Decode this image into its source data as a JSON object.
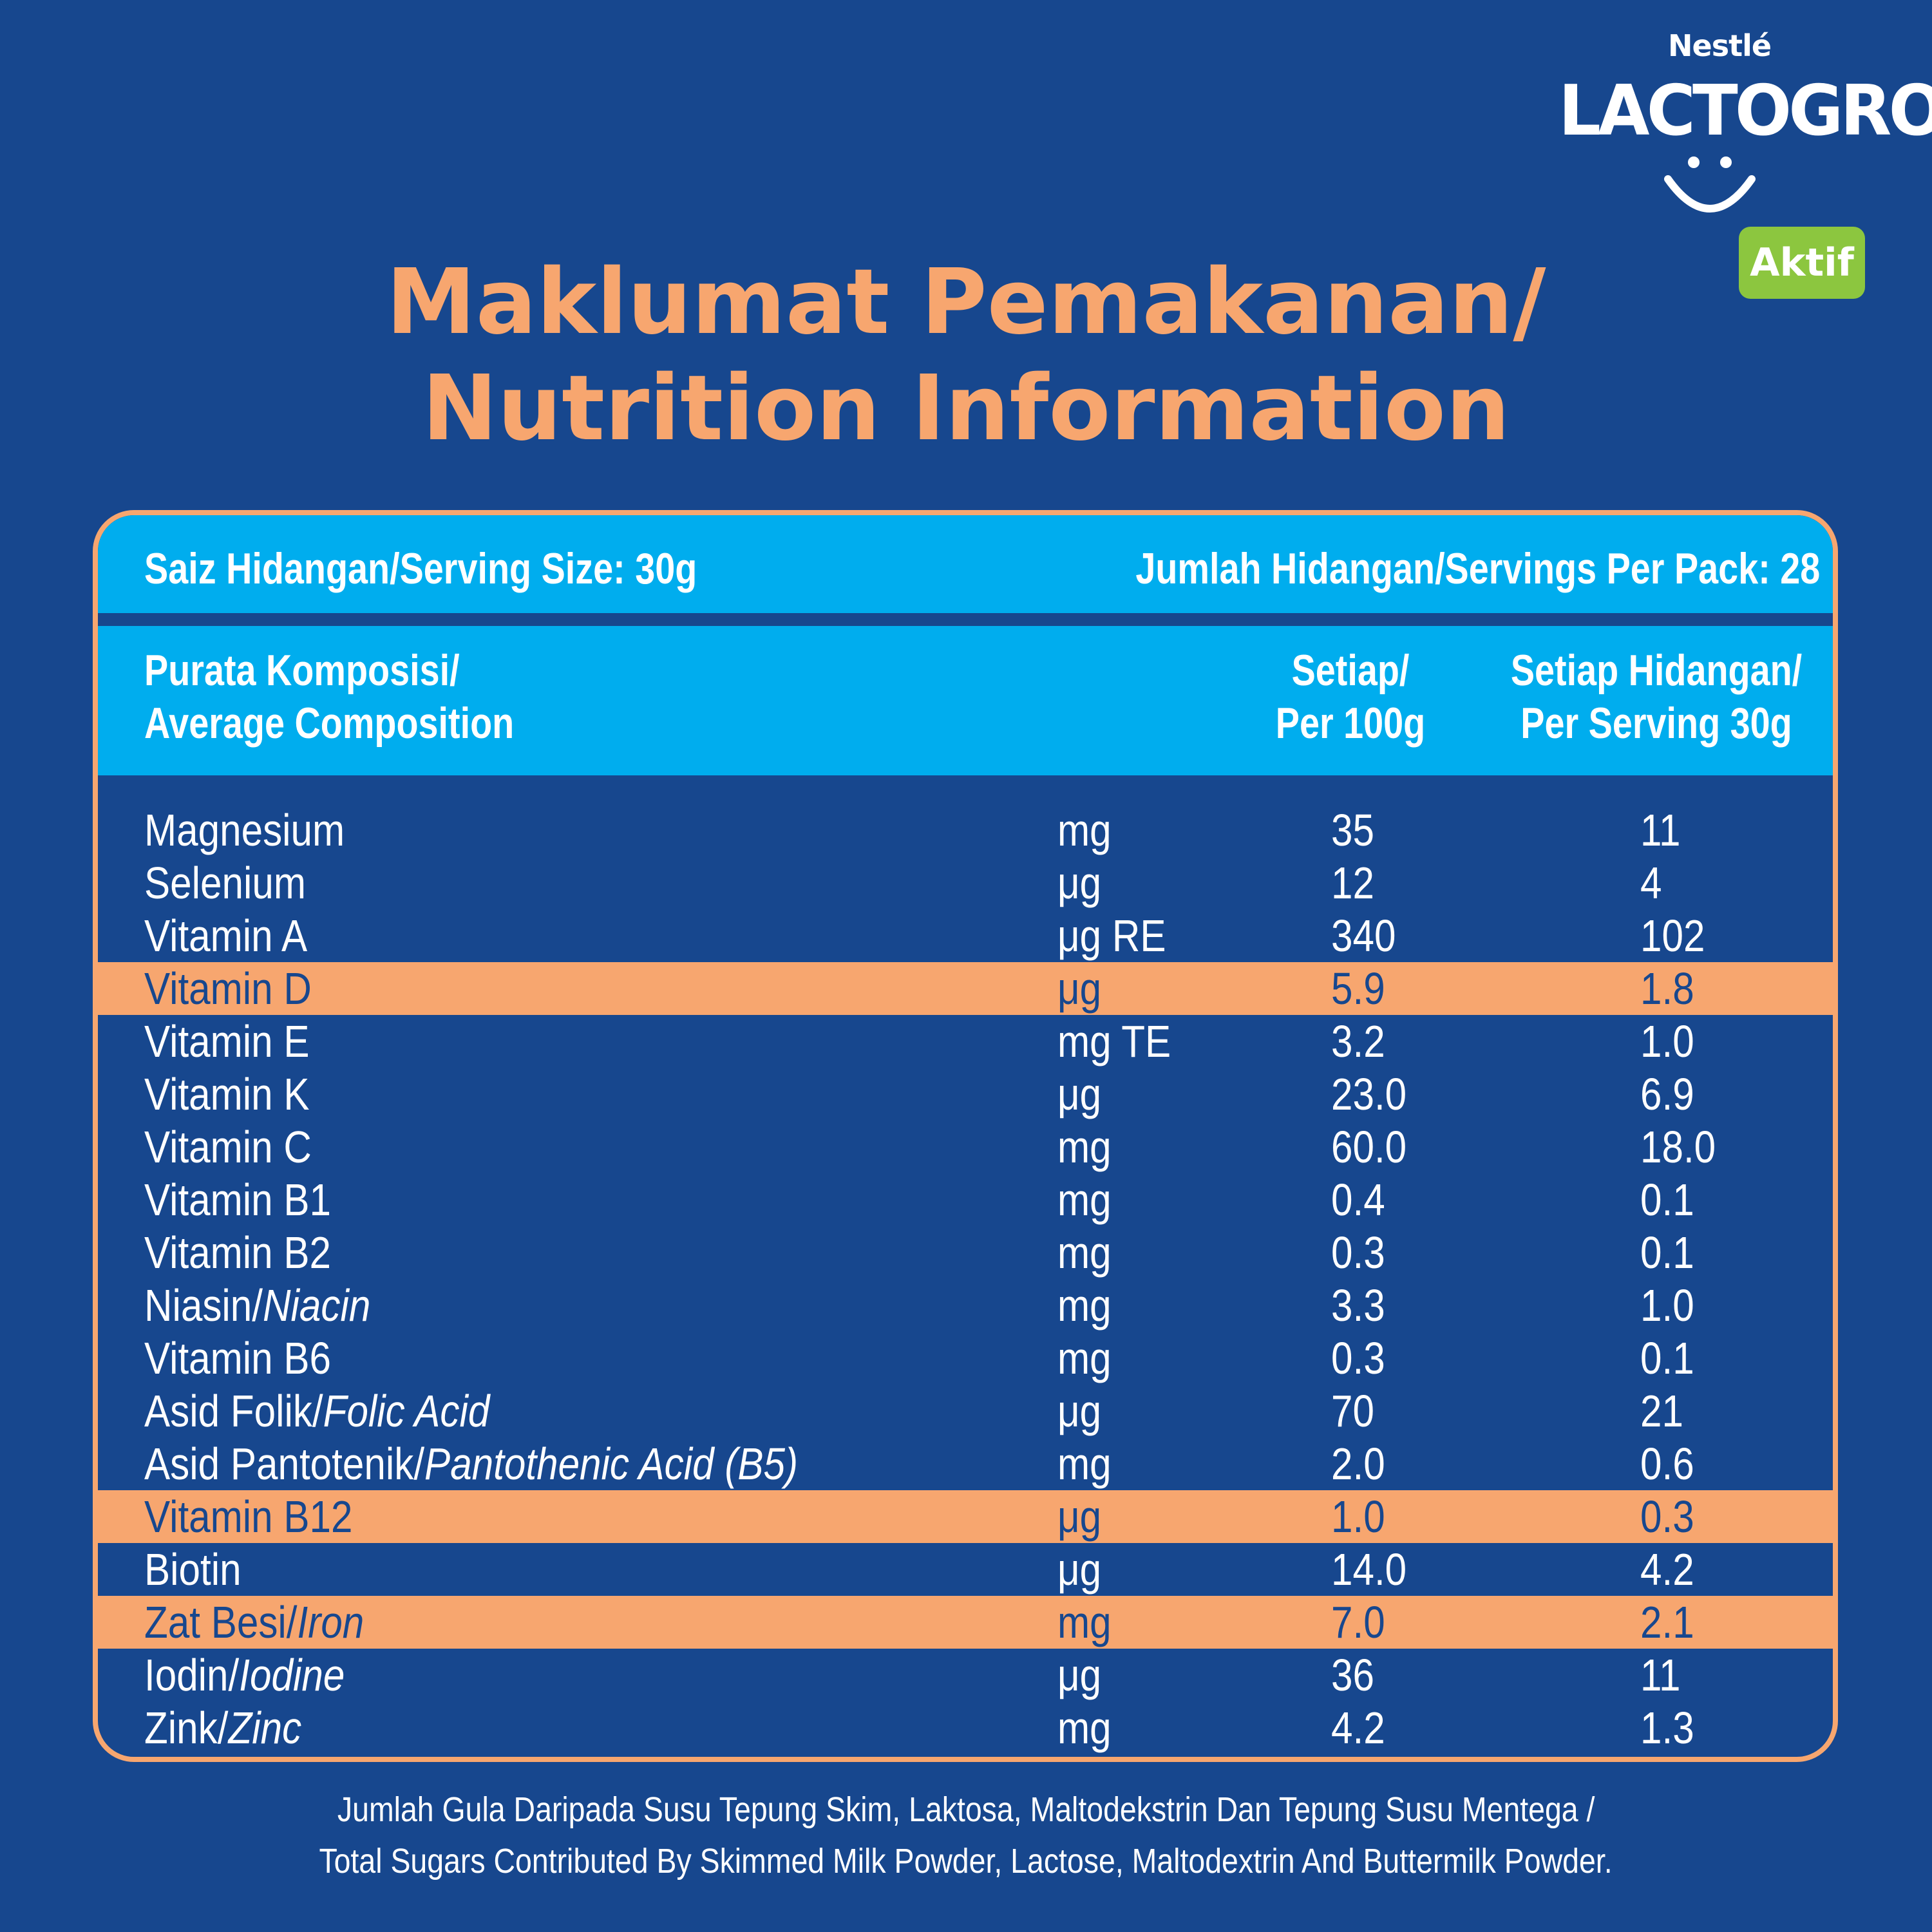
{
  "logo": {
    "brand_top": "Nestlé",
    "brand_name": "LACTOGROW",
    "badge": "Aktif",
    "colors": {
      "badge": "#8cc63f",
      "text": "#ffffff"
    },
    "icon": "smile-icon"
  },
  "title": {
    "line1": "Maklumat Pemakanan/",
    "line2": "Nutrition Information",
    "color": "#f7a66f"
  },
  "serving": {
    "size": "Saiz Hidangan/Serving Size: 30g",
    "per_pack": "Jumlah Hidangan/Servings Per Pack: 28"
  },
  "table": {
    "header": {
      "composition_line1": "Purata Komposisi/",
      "composition_line2": "Average Composition",
      "per100_line1": "Setiap/",
      "per100_line2": "Per 100g",
      "perserving_line1": "Setiap Hidangan/",
      "perserving_line2": "Per Serving 30g"
    },
    "rows": [
      {
        "name": "Magnesium",
        "name_en": "",
        "unit": "mg",
        "per100": "35",
        "serving": "11",
        "highlight": false
      },
      {
        "name": "Selenium",
        "name_en": "",
        "unit": "μg",
        "per100": "12",
        "serving": "4",
        "highlight": false
      },
      {
        "name": "Vitamin A",
        "name_en": "",
        "unit": "μg RE",
        "per100": "340",
        "serving": "102",
        "highlight": false
      },
      {
        "name": "Vitamin D",
        "name_en": "",
        "unit": "μg",
        "per100": "5.9",
        "serving": "1.8",
        "highlight": true
      },
      {
        "name": "Vitamin E",
        "name_en": "",
        "unit": "mg TE",
        "per100": "3.2",
        "serving": "1.0",
        "highlight": false
      },
      {
        "name": "Vitamin K",
        "name_en": "",
        "unit": "μg",
        "per100": "23.0",
        "serving": "6.9",
        "highlight": false
      },
      {
        "name": "Vitamin C",
        "name_en": "",
        "unit": "mg",
        "per100": "60.0",
        "serving": "18.0",
        "highlight": false
      },
      {
        "name": "Vitamin B1",
        "name_en": "",
        "unit": "mg",
        "per100": "0.4",
        "serving": "0.1",
        "highlight": false
      },
      {
        "name": "Vitamin B2",
        "name_en": "",
        "unit": "mg",
        "per100": "0.3",
        "serving": "0.1",
        "highlight": false
      },
      {
        "name": "Niasin/",
        "name_en": "Niacin",
        "unit": "mg",
        "per100": "3.3",
        "serving": "1.0",
        "highlight": false
      },
      {
        "name": "Vitamin B6",
        "name_en": "",
        "unit": "mg",
        "per100": "0.3",
        "serving": "0.1",
        "highlight": false
      },
      {
        "name": "Asid Folik/",
        "name_en": "Folic Acid",
        "unit": "μg",
        "per100": "70",
        "serving": "21",
        "highlight": false
      },
      {
        "name": "Asid Pantotenik/",
        "name_en": "Pantothenic Acid (B5)",
        "unit": "mg",
        "per100": "2.0",
        "serving": "0.6",
        "highlight": false
      },
      {
        "name": "Vitamin B12",
        "name_en": "",
        "unit": "μg",
        "per100": "1.0",
        "serving": "0.3",
        "highlight": true
      },
      {
        "name": "Biotin",
        "name_en": "",
        "unit": "μg",
        "per100": "14.0",
        "serving": "4.2",
        "highlight": false
      },
      {
        "name": "Zat Besi/",
        "name_en": "Iron",
        "unit": "mg",
        "per100": "7.0",
        "serving": "2.1",
        "highlight": true
      },
      {
        "name": "Iodin/",
        "name_en": "Iodine",
        "unit": "μg",
        "per100": "36",
        "serving": "11",
        "highlight": false
      },
      {
        "name": "Zink/",
        "name_en": "Zinc",
        "unit": "mg",
        "per100": "4.2",
        "serving": "1.3",
        "highlight": false
      }
    ]
  },
  "footnote": {
    "line1": "Jumlah Gula Daripada Susu Tepung Skim, Laktosa, Maltodekstrin Dan Tepung Susu Mentega /",
    "line2": "Total Sugars Contributed By Skimmed Milk Powder, Lactose, Maltodextrin And Buttermilk Powder."
  },
  "colors": {
    "background": "#17478e",
    "band": "#00adee",
    "highlight": "#f7a66f"
  }
}
